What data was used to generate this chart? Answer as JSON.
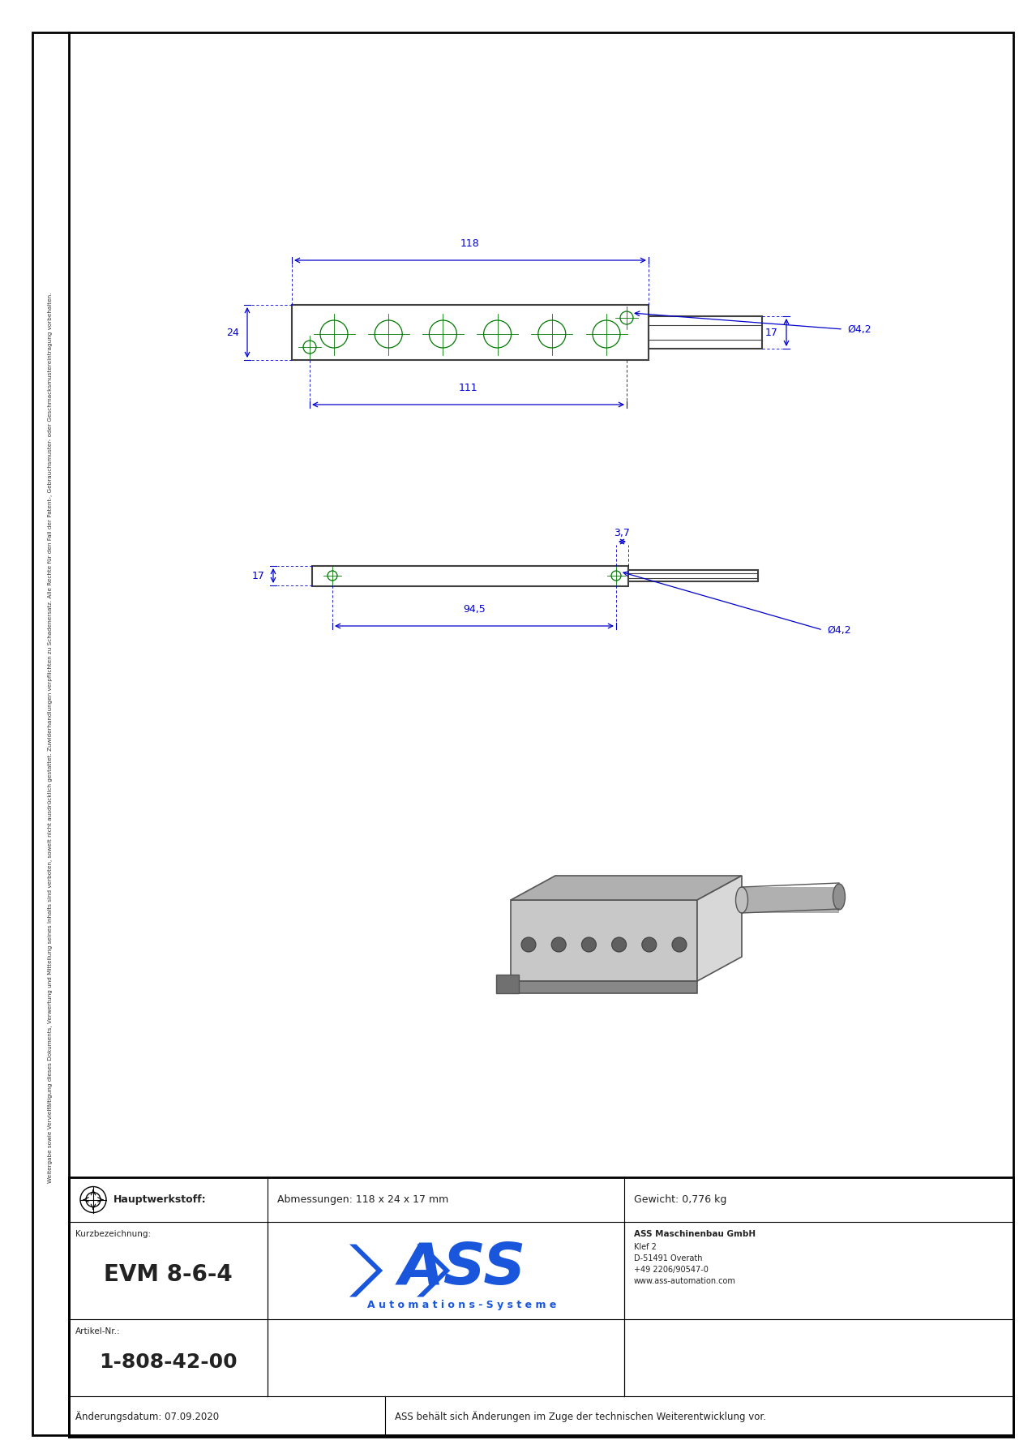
{
  "bg_color": "#ffffff",
  "border_color": "#000000",
  "dim_color": "#0000cc",
  "drawing_color": "#404040",
  "green_color": "#007700",
  "ass_blue": "#1a56db",
  "title_block": {
    "hauptwerkstoff_label": "Hauptwerkstoff:",
    "abmessungen": "Abmessungen: 118 x 24 x 17 mm",
    "gewicht": "Gewicht: 0,776 kg",
    "kurzbezeichnung_label": "Kurzbezeichnung:",
    "kurzbezeichnung": "EVM 8-6-4",
    "artikel_label": "Artikel-Nr.:",
    "artikel": "1-808-42-00",
    "aenderung_label": "Änderungsdatum: 07.09.2020",
    "aenderung_text": "ASS behält sich Änderungen im Zuge der technischen Weiterentwicklung vor.",
    "company_name": "ASS Maschinenbau GmbH",
    "company_line1": "Klef 2",
    "company_line2": "D-51491 Overath",
    "company_line3": "+49 2206/90547-0",
    "company_line4": "www.ass-automation.com",
    "automations_systeme": "A u t o m a t i o n s - S y s t e m e"
  },
  "sidebar_text": "Weitergabe sowie Vervielfältigung dieses Dokuments, Verwertung und Mitteilung seines Inhalts sind verboten, soweit nicht ausdrücklich gestattet. Zuwiderhandlungen verpflichten zu Schadenersatz. Alle Rechte für den Fall der Patent-, Gebrauchsmuster- oder Geschmacksmustereintragung vorbehalten.",
  "top_view": {
    "dim_118": "118",
    "dim_24": "24",
    "dim_17": "17",
    "dim_111": "111",
    "dim_42": "Ø4,2"
  },
  "side_view": {
    "dim_17": "17",
    "dim_37": "3,7",
    "dim_945": "94,5",
    "dim_42": "Ø4,2"
  }
}
